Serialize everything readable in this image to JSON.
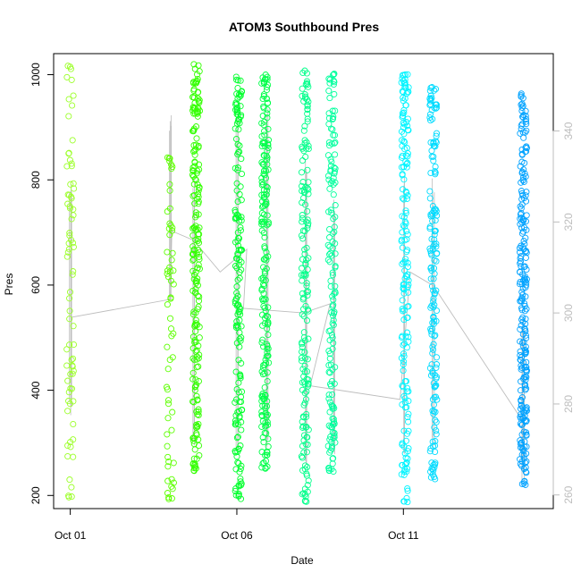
{
  "chart_data": {
    "type": "scatter",
    "title": "ATOM3 Southbound Pres",
    "xlabel": "Date",
    "ylabel": "Pres",
    "x_ticks": [
      {
        "day": 1,
        "label": "Oct 01"
      },
      {
        "day": 6,
        "label": "Oct 06"
      },
      {
        "day": 11,
        "label": "Oct 11"
      }
    ],
    "y_ticks": [
      200,
      400,
      600,
      800,
      1000
    ],
    "y2_ticks": [
      260,
      280,
      300,
      320,
      340
    ],
    "xlim": [
      "Sep 30 12:00",
      "Oct 15 12:00"
    ],
    "ylim": [
      175,
      1040
    ],
    "y2lim": [
      257,
      357
    ],
    "grid": false,
    "legend": "none",
    "secondary_color": "#bdbdbd",
    "profiles": [
      {
        "day": 1.0,
        "color": "#9cff2a",
        "pmin": 195,
        "pmax": 1015,
        "n": 70
      },
      {
        "day": 4.0,
        "color": "#5dff00",
        "pmin": 196,
        "pmax": 840,
        "n": 55
      },
      {
        "day": 4.78,
        "color": "#33ff00",
        "pmin": 250,
        "pmax": 1015,
        "n": 200
      },
      {
        "day": 6.05,
        "color": "#00ff2c",
        "pmin": 196,
        "pmax": 992,
        "n": 170
      },
      {
        "day": 6.85,
        "color": "#00ff49",
        "pmin": 250,
        "pmax": 995,
        "n": 200
      },
      {
        "day": 8.05,
        "color": "#00ff8a",
        "pmin": 188,
        "pmax": 1005,
        "n": 160
      },
      {
        "day": 8.85,
        "color": "#00ff9d",
        "pmin": 250,
        "pmax": 1000,
        "n": 150
      },
      {
        "day": 11.05,
        "color": "#00f4ff",
        "pmin": 188,
        "pmax": 1003,
        "n": 170
      },
      {
        "day": 11.9,
        "color": "#00dbff",
        "pmin": 235,
        "pmax": 975,
        "n": 160
      },
      {
        "day": 14.6,
        "color": "#00a2ff",
        "pmin": 225,
        "pmax": 960,
        "n": 230
      }
    ],
    "secondary_series": {
      "name": "",
      "points": [
        {
          "day": 1.0,
          "value": 299
        },
        {
          "day": 4.0,
          "value": 303
        },
        {
          "day": 4.05,
          "value": 318
        },
        {
          "day": 4.7,
          "value": 316
        },
        {
          "day": 5.5,
          "value": 309
        },
        {
          "day": 6.3,
          "value": 314
        },
        {
          "day": 6.2,
          "value": 301
        },
        {
          "day": 8.0,
          "value": 300
        },
        {
          "day": 8.8,
          "value": 302
        },
        {
          "day": 8.2,
          "value": 284
        },
        {
          "day": 10.9,
          "value": 281
        },
        {
          "day": 11.2,
          "value": 309
        },
        {
          "day": 11.9,
          "value": 306
        },
        {
          "day": 14.6,
          "value": 276
        },
        {
          "day": 14.6,
          "value": 272
        }
      ],
      "vertical_ranges": [
        {
          "day": 1.0,
          "min": 276,
          "max": 330
        },
        {
          "day": 4.0,
          "min": 302,
          "max": 344
        },
        {
          "day": 4.7,
          "min": 270,
          "max": 330
        },
        {
          "day": 6.0,
          "min": 268,
          "max": 345
        },
        {
          "day": 6.9,
          "min": 270,
          "max": 345
        },
        {
          "day": 8.1,
          "min": 266,
          "max": 335
        },
        {
          "day": 8.9,
          "min": 268,
          "max": 325
        },
        {
          "day": 11.0,
          "min": 266,
          "max": 330
        },
        {
          "day": 11.9,
          "min": 268,
          "max": 330
        },
        {
          "day": 14.6,
          "min": 261,
          "max": 300
        }
      ]
    }
  }
}
